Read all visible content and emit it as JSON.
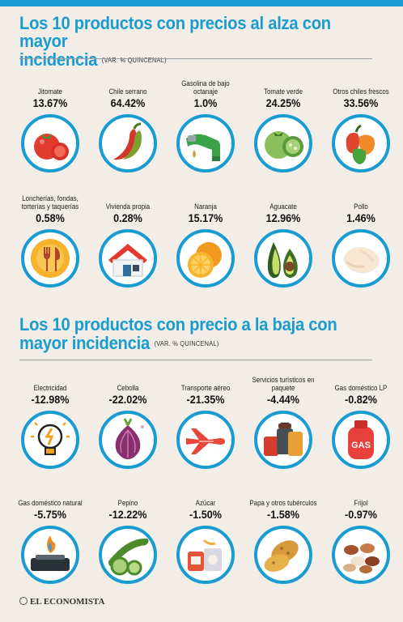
{
  "section_up": {
    "title_line1": "Los 10 productos con precios al alza con mayor",
    "title_line2": "incidencia",
    "note": "(VAR. % QUINCENAL)"
  },
  "section_down": {
    "title_line1": "Los 10 productos con precio a la baja con",
    "title_line2": "mayor incidencia",
    "note": "(VAR. % QUINCENAL)"
  },
  "footer": {
    "brand": "EL ECONOMISTA"
  },
  "colors": {
    "accent": "#1a9cd0",
    "background": "#f2ede6"
  },
  "chart_data": [
    {
      "type": "table",
      "title": "Los 10 productos con precios al alza con mayor incidencia",
      "subtitle": "(VAR. % QUINCENAL)",
      "categories": [
        "Jitomate",
        "Chile serrano",
        "Gasolina de bajo octanaje",
        "Tomate verde",
        "Otros chiles frescos",
        "Loncherías, fondas, torterías y taquerías",
        "Vivienda propia",
        "Naranja",
        "Aguacate",
        "Pollo"
      ],
      "labels": [
        "13.67%",
        "64.42%",
        "1.0%",
        "24.25%",
        "33.56%",
        "0.58%",
        "0.28%",
        "15.17%",
        "12.96%",
        "1.46%"
      ],
      "values": [
        13.67,
        64.42,
        1.0,
        24.25,
        33.56,
        0.58,
        0.28,
        15.17,
        12.96,
        1.46
      ],
      "icons": [
        "tomato-icon",
        "chili-pepper-icon",
        "fuel-nozzle-icon",
        "green-tomato-icon",
        "peppers-icon",
        "cutlery-icon",
        "house-icon",
        "orange-icon",
        "avocado-icon",
        "chicken-icon"
      ]
    },
    {
      "type": "table",
      "title": "Los 10 productos con precio a la baja con mayor incidencia",
      "subtitle": "(VAR. % QUINCENAL)",
      "categories": [
        "Electricidad",
        "Cebolla",
        "Transporte aéreo",
        "Servicios turísticos en paquete",
        "Gas doméstico LP",
        "Gas doméstico natural",
        "Pepino",
        "Azúcar",
        "Papa y otros tubérculos",
        "Frijol"
      ],
      "labels": [
        "-12.98%",
        "-22.02%",
        "-21.35%",
        "-4.44%",
        "-0.82%",
        "-5.75%",
        "-12.22%",
        "-1.50%",
        "-1.58%",
        "-0.97%"
      ],
      "values": [
        -12.98,
        -22.02,
        -21.35,
        -4.44,
        -0.82,
        -5.75,
        -12.22,
        -1.5,
        -1.58,
        -0.97
      ],
      "icons": [
        "lightbulb-icon",
        "onion-icon",
        "airplane-icon",
        "luggage-icon",
        "gas-cylinder-icon",
        "gas-stove-icon",
        "cucumber-icon",
        "sugar-icon",
        "potato-icon",
        "beans-icon"
      ]
    }
  ]
}
